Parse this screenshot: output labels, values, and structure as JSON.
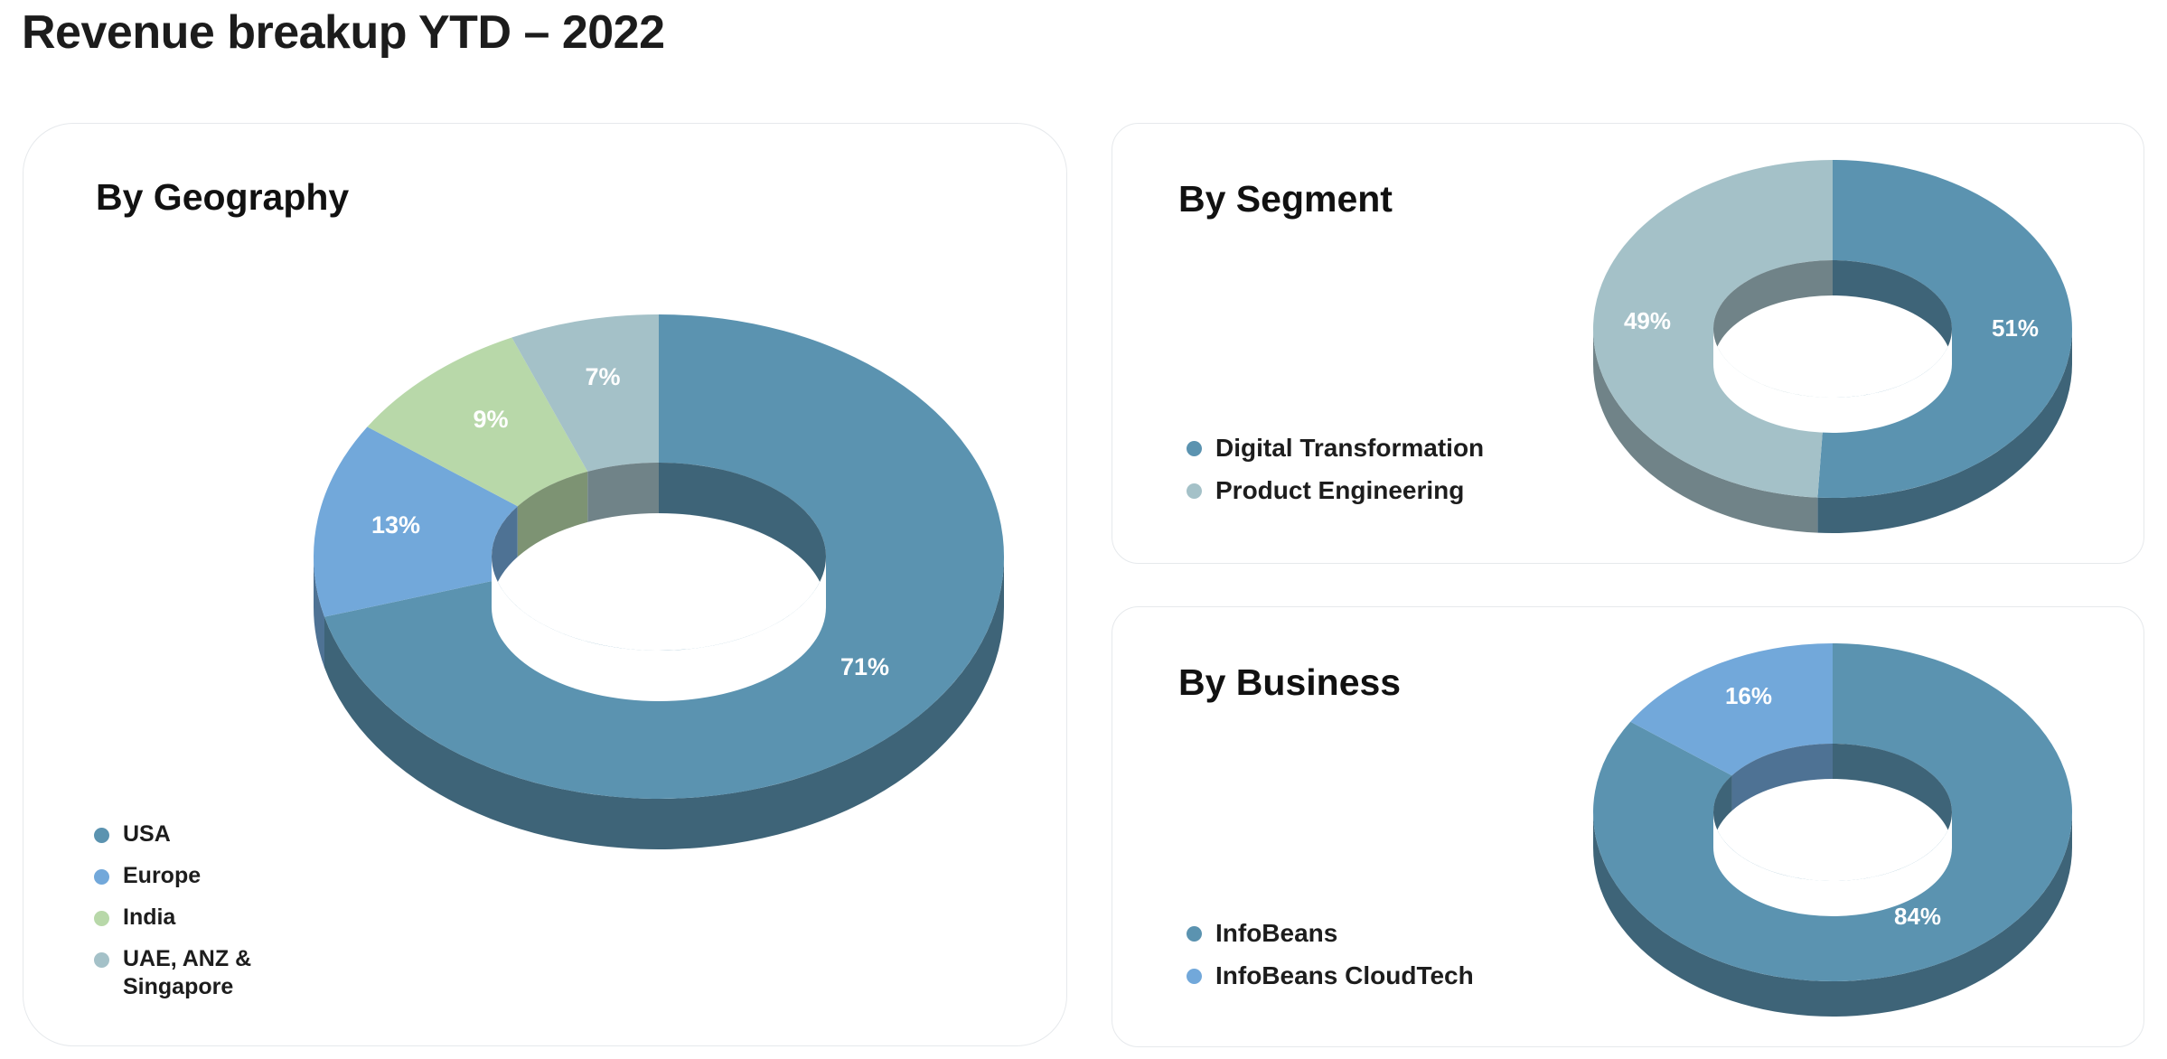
{
  "page": {
    "title": "Revenue breakup YTD – 2022"
  },
  "colors": {
    "usa": "#5b93b0",
    "europe": "#72a8da",
    "india": "#b8d8a9",
    "uae": "#a4c1c8",
    "digital": "#5b93b0",
    "product": "#a4c1c8",
    "infobeans": "#5b93b0",
    "cloudtech": "#72a8da"
  },
  "chart_data": [
    {
      "type": "pie",
      "title": "By Geography",
      "categories": [
        "USA",
        "Europe",
        "India",
        "UAE, ANZ & Singapore"
      ],
      "values": [
        71,
        13,
        9,
        7
      ],
      "labels": [
        "71%",
        "13%",
        "9%",
        "7%"
      ],
      "colors": [
        "#5b93b0",
        "#72a8da",
        "#b8d8a9",
        "#a4c1c8"
      ],
      "legend_placement": "bottom-left",
      "style": "3d-donut"
    },
    {
      "type": "pie",
      "title": "By Segment",
      "categories": [
        "Digital Transformation",
        "Product Engineering"
      ],
      "values": [
        51,
        49
      ],
      "labels": [
        "51%",
        "49%"
      ],
      "colors": [
        "#5b93b0",
        "#a4c1c8"
      ],
      "legend_placement": "bottom-left",
      "style": "3d-donut"
    },
    {
      "type": "pie",
      "title": "By Business",
      "categories": [
        "InfoBeans",
        "InfoBeans CloudTech"
      ],
      "values": [
        84,
        16
      ],
      "labels": [
        "84%",
        "16%"
      ],
      "colors": [
        "#5b93b0",
        "#72a8da"
      ],
      "legend_placement": "bottom-left",
      "style": "3d-donut"
    }
  ]
}
